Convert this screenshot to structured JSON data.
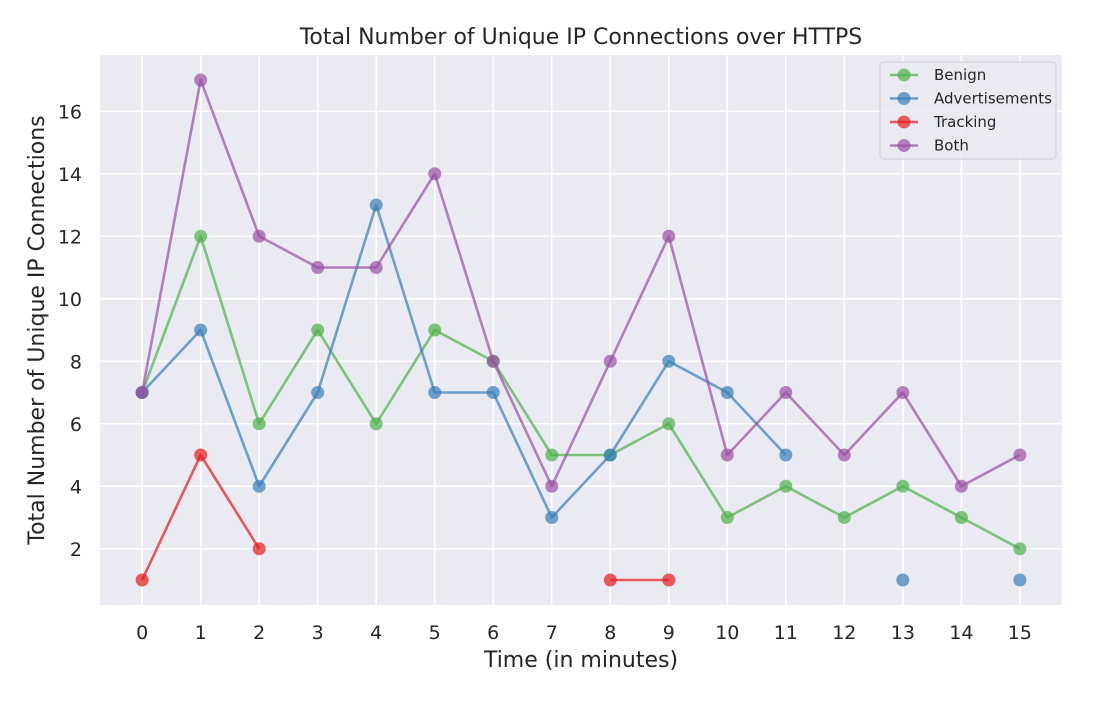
{
  "chart_data": {
    "type": "line",
    "title": "Total Number of Unique IP Connections over HTTPS",
    "xlabel": "Time (in minutes)",
    "ylabel": "Total Number of Unique IP Connections",
    "x_ticks": [
      0,
      1,
      2,
      3,
      4,
      5,
      6,
      7,
      8,
      9,
      10,
      11,
      12,
      13,
      14,
      15
    ],
    "y_ticks": [
      2,
      4,
      6,
      8,
      10,
      12,
      14,
      16
    ],
    "xlim": [
      -0.72,
      15.72
    ],
    "ylim": [
      0.2,
      17.8
    ],
    "grid": true,
    "legend_position": "top-right",
    "series": [
      {
        "name": "Benign",
        "color": "#4daf4a",
        "x": [
          0,
          1,
          2,
          3,
          4,
          5,
          6,
          7,
          8,
          9,
          10,
          11,
          12,
          13,
          14,
          15
        ],
        "values": [
          7,
          12,
          6,
          9,
          6,
          9,
          8,
          5,
          5,
          6,
          3,
          4,
          3,
          4,
          3,
          2
        ]
      },
      {
        "name": "Advertisements",
        "color": "#377eb8",
        "x": [
          0,
          1,
          2,
          3,
          4,
          5,
          6,
          7,
          8,
          9,
          10,
          11,
          null,
          13,
          null,
          15
        ],
        "values": [
          7,
          9,
          4,
          7,
          13,
          7,
          7,
          3,
          5,
          8,
          7,
          5,
          null,
          1,
          null,
          1
        ]
      },
      {
        "name": "Tracking",
        "color": "#e41a1c",
        "x": [
          0,
          1,
          2,
          null,
          8,
          9
        ],
        "values": [
          1,
          5,
          2,
          null,
          1,
          1
        ]
      },
      {
        "name": "Both",
        "color": "#984ea3",
        "x": [
          0,
          1,
          2,
          3,
          4,
          5,
          6,
          7,
          8,
          9,
          10,
          11,
          12,
          13,
          14,
          15
        ],
        "values": [
          7,
          17,
          12,
          11,
          11,
          14,
          8,
          4,
          8,
          12,
          5,
          7,
          5,
          7,
          4,
          5
        ]
      }
    ]
  },
  "style": {
    "plot_background": "#eaeaf2",
    "grid_color": "#ffffff",
    "text_color": "#262626"
  }
}
